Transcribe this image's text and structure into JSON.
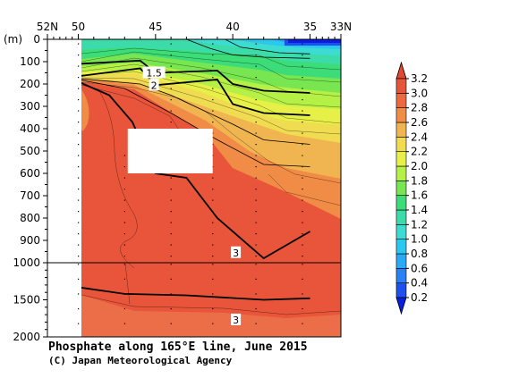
{
  "chart_data": {
    "type": "heatmap",
    "title": "Phosphate along 165°E line, June 2015",
    "credit": "(C) Japan Meteorological Agency",
    "y_unit_label": "(m)",
    "x_axis": {
      "direction": "latitude decreasing left to right",
      "range": [
        52,
        33
      ],
      "tick_labels": [
        "52N",
        "50",
        "45",
        "40",
        "35",
        "33N"
      ],
      "tick_values": [
        52,
        50,
        45,
        40,
        35,
        33
      ]
    },
    "y_axis": {
      "upper_panel": {
        "range": [
          0,
          1000
        ],
        "tick_labels": [
          "0",
          "100",
          "200",
          "300",
          "400",
          "500",
          "600",
          "700",
          "800",
          "900",
          "1000"
        ]
      },
      "lower_panel": {
        "range": [
          1000,
          2000
        ],
        "tick_labels": [
          "1500",
          "2000"
        ]
      }
    },
    "data_extent": {
      "lat_north": 50,
      "lat_south": 35,
      "depth_max": 2000
    },
    "missing_box": {
      "lat_from": 46.8,
      "lat_to": 41.3,
      "depth_from": 400,
      "depth_to": 600
    },
    "colorbar": {
      "levels": [
        0.2,
        0.4,
        0.6,
        0.8,
        1.0,
        1.2,
        1.4,
        1.6,
        1.8,
        2.0,
        2.2,
        2.4,
        2.6,
        2.8,
        3.0,
        3.2
      ],
      "level_labels": [
        "0.2",
        "0.4",
        "0.6",
        "0.8",
        "1.0",
        "1.2",
        "1.4",
        "1.6",
        "1.8",
        "2.0",
        "2.2",
        "2.4",
        "2.6",
        "2.8",
        "3.0",
        "3.2"
      ],
      "colors": [
        "#0a1ee0",
        "#1e50f0",
        "#2882f5",
        "#28aaf5",
        "#28c8f0",
        "#3cdcd2",
        "#3cdcaa",
        "#3cdc78",
        "#78e650",
        "#b4f046",
        "#e6f046",
        "#f0dc50",
        "#f0b450",
        "#f08c46",
        "#ec6a3e",
        "#e6543a",
        "#e04830"
      ]
    },
    "contour_labels": [
      {
        "text": "1.5",
        "lat": 45.1,
        "depth": 150
      },
      {
        "text": "2",
        "lat": 45.1,
        "depth": 205
      },
      {
        "text": "3",
        "lat": 39.8,
        "depth": 955
      },
      {
        "text": "3",
        "lat": 39.8,
        "depth": 1770
      }
    ],
    "isolines": [
      {
        "value": 0.8,
        "points": [
          [
            40.5,
            0
          ],
          [
            39.5,
            35
          ],
          [
            37,
            60
          ],
          [
            35,
            65
          ]
        ]
      },
      {
        "value": 1.0,
        "points": [
          [
            43,
            0
          ],
          [
            41.5,
            40
          ],
          [
            40,
            70
          ],
          [
            38,
            80
          ],
          [
            35,
            85
          ]
        ]
      },
      {
        "value": 1.5,
        "points": [
          [
            50,
            110
          ],
          [
            46,
            95
          ],
          [
            45,
            150
          ],
          [
            41,
            140
          ],
          [
            40,
            200
          ],
          [
            38,
            230
          ],
          [
            35,
            240
          ]
        ]
      },
      {
        "value": 2.0,
        "points": [
          [
            50,
            165
          ],
          [
            46,
            130
          ],
          [
            45,
            205
          ],
          [
            41,
            180
          ],
          [
            40,
            290
          ],
          [
            38,
            330
          ],
          [
            35,
            340
          ]
        ]
      },
      {
        "value": 2.4,
        "points": [
          [
            50,
            175
          ],
          [
            46,
            200
          ],
          [
            44,
            250
          ],
          [
            40,
            380
          ],
          [
            38,
            450
          ],
          [
            35,
            470
          ]
        ]
      },
      {
        "value": 2.6,
        "points": [
          [
            50,
            180
          ],
          [
            47,
            220
          ],
          [
            44,
            330
          ],
          [
            41,
            450
          ],
          [
            38,
            560
          ],
          [
            35,
            570
          ]
        ]
      },
      {
        "value": 3.0,
        "points": [
          [
            50,
            190
          ],
          [
            48,
            250
          ],
          [
            46.5,
            370
          ],
          [
            45,
            600
          ],
          [
            43,
            620
          ],
          [
            41,
            800
          ],
          [
            38,
            980
          ],
          [
            35,
            860
          ]
        ]
      },
      {
        "value": 3.0,
        "points": [
          [
            50,
            1330
          ],
          [
            47,
            1420
          ],
          [
            43,
            1440
          ],
          [
            38,
            1500
          ],
          [
            35,
            1480
          ]
        ]
      }
    ]
  }
}
